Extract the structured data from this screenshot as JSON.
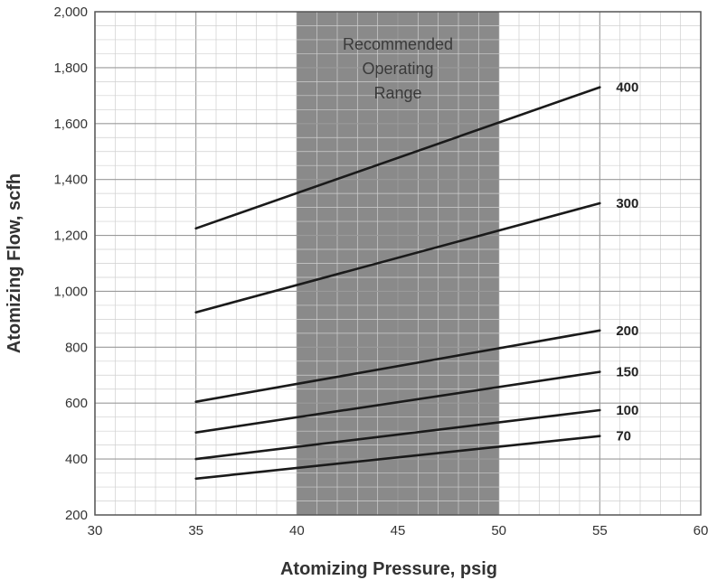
{
  "chart_data": {
    "type": "line",
    "xlabel": "Atomizing Pressure, psig",
    "ylabel": "Atomizing Flow, scfh",
    "xlim": [
      30,
      60
    ],
    "ylim": [
      200,
      2000
    ],
    "x_ticks": [
      30,
      35,
      40,
      45,
      50,
      55,
      60
    ],
    "y_ticks": [
      200,
      400,
      600,
      800,
      1000,
      1200,
      1400,
      1600,
      1800,
      2000
    ],
    "x_tick_labels": [
      "30",
      "35",
      "40",
      "45",
      "50",
      "55",
      "60"
    ],
    "y_tick_labels": [
      "200",
      "400",
      "600",
      "800",
      "1,000",
      "1,200",
      "1,400",
      "1,600",
      "1,800",
      "2,000"
    ],
    "grid": true,
    "shaded_region": {
      "x_range": [
        40,
        50
      ],
      "label_lines": [
        "Recommended",
        "Operating",
        "Range"
      ],
      "color": "#8a8a8a"
    },
    "line_color": "#1a1a1a",
    "series": [
      {
        "name": "400",
        "x": [
          35,
          55
        ],
        "y": [
          1225,
          1730
        ]
      },
      {
        "name": "300",
        "x": [
          35,
          55
        ],
        "y": [
          925,
          1315
        ]
      },
      {
        "name": "200",
        "x": [
          35,
          55
        ],
        "y": [
          605,
          860
        ]
      },
      {
        "name": "150",
        "x": [
          35,
          55
        ],
        "y": [
          495,
          712
        ]
      },
      {
        "name": "100",
        "x": [
          35,
          55
        ],
        "y": [
          400,
          575
        ]
      },
      {
        "name": "70",
        "x": [
          35,
          55
        ],
        "y": [
          330,
          482
        ]
      }
    ]
  }
}
